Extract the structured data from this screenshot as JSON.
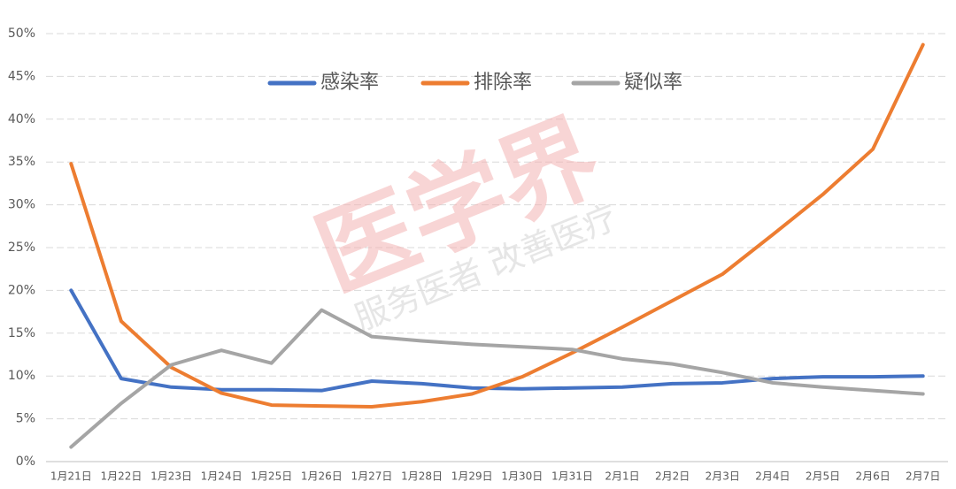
{
  "chart_data": {
    "type": "line",
    "categories": [
      "1月21日",
      "1月22日",
      "1月23日",
      "1月24日",
      "1月25日",
      "1月26日",
      "1月27日",
      "1月28日",
      "1月29日",
      "1月30日",
      "1月31日",
      "2月1日",
      "2月2日",
      "2月3日",
      "2月4日",
      "2月5日",
      "2月6日",
      "2月7日"
    ],
    "series": [
      {
        "name": "感染率",
        "color": "#4472c4",
        "values": [
          20.0,
          9.7,
          8.7,
          8.4,
          8.4,
          8.3,
          9.4,
          9.1,
          8.6,
          8.5,
          8.6,
          8.7,
          9.1,
          9.2,
          9.7,
          9.9,
          9.9,
          10.0
        ]
      },
      {
        "name": "排除率",
        "color": "#ed7d31",
        "values": [
          34.8,
          16.4,
          11.0,
          8.0,
          6.6,
          6.5,
          6.4,
          7.0,
          7.9,
          9.9,
          12.7,
          15.7,
          18.8,
          21.9,
          26.5,
          31.2,
          36.5,
          48.7
        ]
      },
      {
        "name": "疑似率",
        "color": "#a5a5a5",
        "values": [
          1.7,
          6.8,
          11.3,
          13.0,
          11.5,
          17.7,
          14.6,
          14.1,
          13.7,
          13.4,
          13.1,
          12.0,
          11.4,
          10.4,
          9.2,
          8.7,
          8.3,
          7.9
        ]
      }
    ],
    "ylim": [
      0,
      50
    ],
    "yticks": [
      {
        "value": 0,
        "label": "0%"
      },
      {
        "value": 5,
        "label": "5%"
      },
      {
        "value": 10,
        "label": "10%"
      },
      {
        "value": 15,
        "label": "15%"
      },
      {
        "value": 20,
        "label": "20%"
      },
      {
        "value": 25,
        "label": "25%"
      },
      {
        "value": 30,
        "label": "30%"
      },
      {
        "value": 35,
        "label": "35%"
      },
      {
        "value": 40,
        "label": "40%"
      },
      {
        "value": 45,
        "label": "45%"
      },
      {
        "value": 50,
        "label": "50%"
      }
    ],
    "grid": true,
    "legend": "top",
    "watermark": "医学界",
    "watermark_slogan": "服务医者 改善医疗"
  }
}
